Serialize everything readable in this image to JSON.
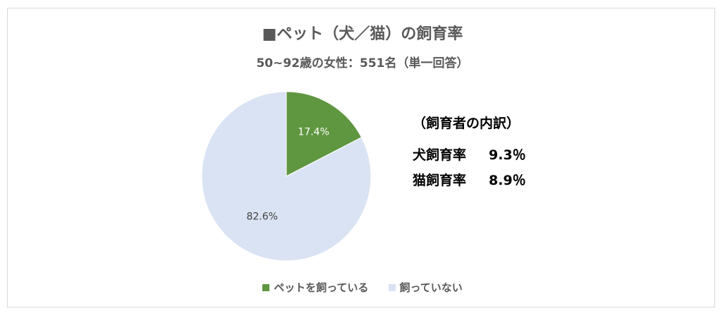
{
  "title": "■ペット（犬／猫）の飼育率",
  "subtitle": "50~92歳の女性：551名（単一回答）",
  "breakdown": {
    "heading": "（飼育者の内訳）",
    "items": [
      {
        "label": "犬飼育率",
        "value": "9.3％"
      },
      {
        "label": "猫飼育率",
        "value": "8.9％"
      }
    ]
  },
  "colors": {
    "owns": "#5f9640",
    "not_owns": "#dae3f3"
  },
  "chart_data": {
    "type": "pie",
    "title": "■ペット（犬／猫）の飼育率",
    "categories": [
      "ペットを飼っている",
      "飼っていない"
    ],
    "values": [
      17.4,
      82.6
    ],
    "labels": [
      "17.4%",
      "82.6%"
    ],
    "legend": "bottom"
  }
}
